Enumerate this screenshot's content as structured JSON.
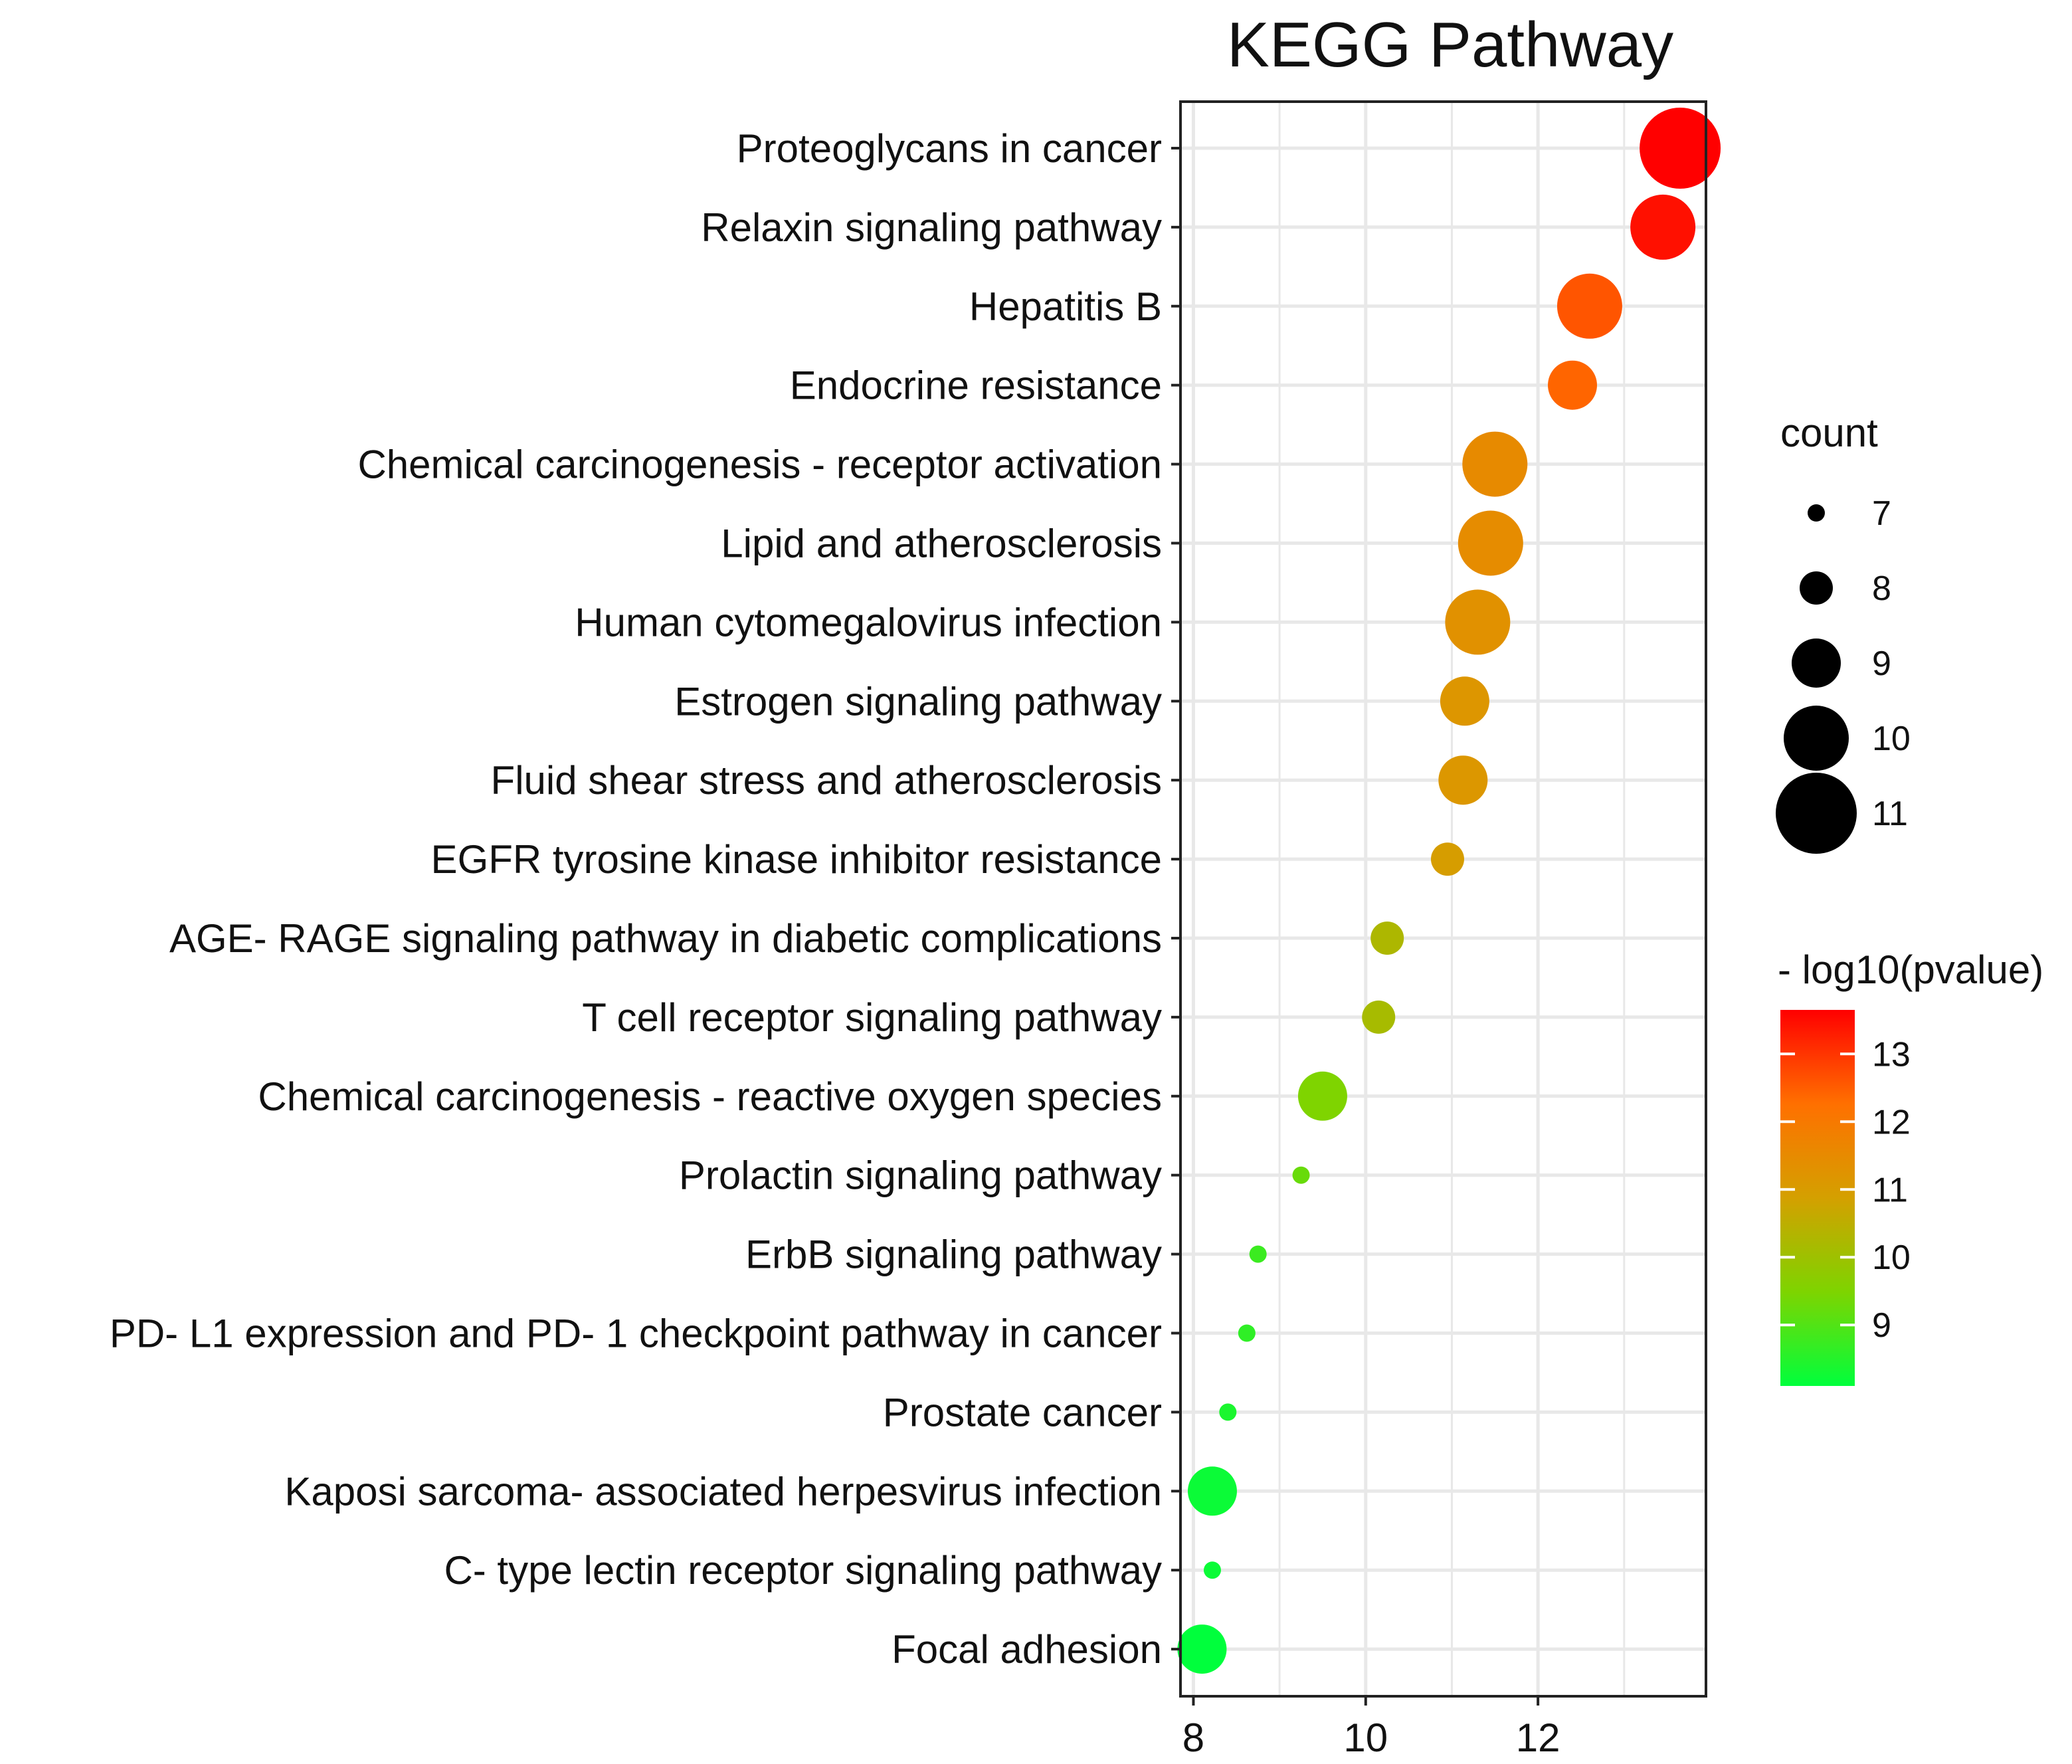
{
  "chart_data": {
    "type": "scatter",
    "title": "KEGG Pathway",
    "xlabel": "",
    "ylabel": "",
    "xlim": [
      7.85,
      13.95
    ],
    "x_ticks": [
      8,
      10,
      12
    ],
    "grid": true,
    "categories": [
      "Proteoglycans in cancer",
      "Relaxin signaling pathway",
      "Hepatitis B",
      "Endocrine resistance",
      "Chemical carcinogenesis -  receptor activation",
      "Lipid and atherosclerosis",
      "Human cytomegalovirus infection",
      "Estrogen signaling pathway",
      "Fluid shear stress and atherosclerosis",
      "EGFR tyrosine kinase inhibitor resistance",
      "AGE- RAGE signaling pathway in diabetic complications",
      "T cell receptor signaling pathway",
      "Chemical carcinogenesis -  reactive oxygen species",
      "Prolactin signaling pathway",
      "ErbB signaling pathway",
      "PD- L1 expression and PD- 1 checkpoint pathway in cancer",
      "Prostate cancer",
      "Kaposi sarcoma- associated herpesvirus infection",
      "C- type lectin receptor signaling pathway",
      "Focal adhesion"
    ],
    "x": [
      13.65,
      13.45,
      12.6,
      12.4,
      11.5,
      11.45,
      11.3,
      11.15,
      11.13,
      10.95,
      10.25,
      10.15,
      9.5,
      9.25,
      8.75,
      8.62,
      8.4,
      8.22,
      8.22,
      8.1
    ],
    "count": [
      11,
      10,
      10,
      9,
      10,
      10,
      10,
      9,
      9,
      8,
      8,
      8,
      9,
      7,
      7,
      7,
      7,
      9,
      7,
      9
    ],
    "neg_log10_pvalue": [
      13.65,
      13.45,
      12.6,
      12.4,
      11.5,
      11.45,
      11.3,
      11.15,
      11.13,
      10.95,
      10.25,
      10.15,
      9.5,
      9.25,
      8.75,
      8.62,
      8.4,
      8.22,
      8.22,
      8.1
    ],
    "size_legend": {
      "title": "count",
      "values": [
        7,
        8,
        9,
        10,
        11
      ],
      "labels": [
        "7",
        "8",
        "9",
        "10",
        "11"
      ]
    },
    "color_legend": {
      "title": "- log10(pvalue)",
      "range": [
        8.1,
        13.65
      ],
      "ticks": [
        9,
        10,
        11,
        12,
        13
      ],
      "labels": [
        "9",
        "10",
        "11",
        "12",
        "13"
      ],
      "colors": [
        "#00ff3c",
        "#7ed400",
        "#d4a000",
        "#ff7000",
        "#ff0000"
      ]
    },
    "legend_position": "right",
    "colors": {
      "grid": "#e8e8e8",
      "panel_border": "#222222",
      "point_size_legend": "#000000"
    }
  }
}
